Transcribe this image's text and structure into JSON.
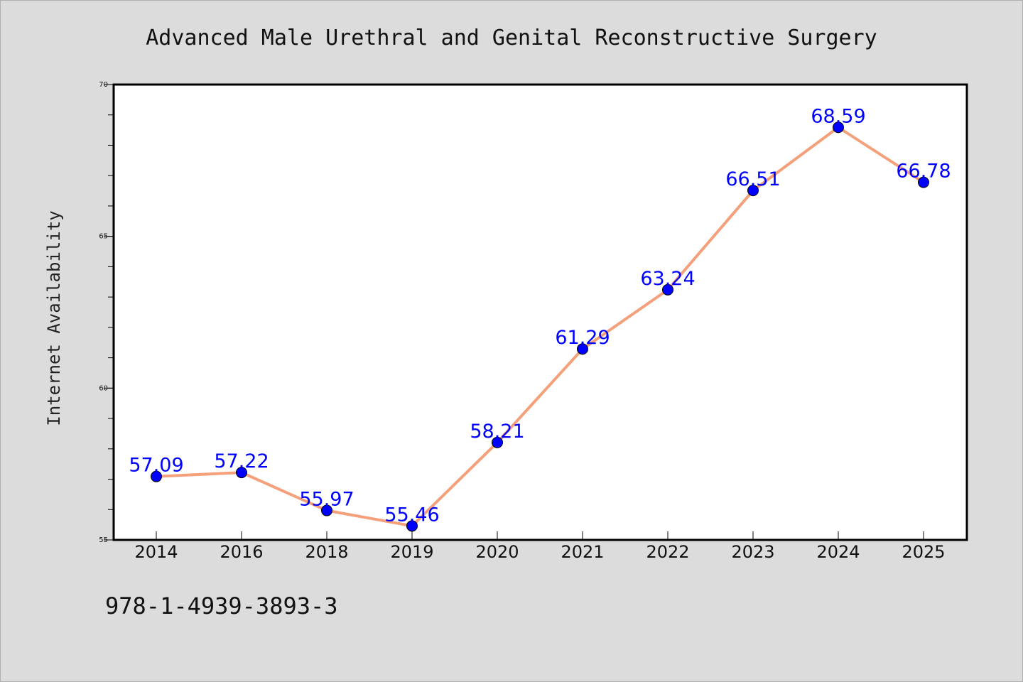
{
  "chart_data": {
    "type": "line",
    "title": "Advanced Male Urethral and Genital Reconstructive Surgery",
    "xlabel": "",
    "ylabel": "Internet Availability",
    "categories": [
      "2014",
      "2016",
      "2018",
      "2019",
      "2020",
      "2021",
      "2022",
      "2023",
      "2024",
      "2025"
    ],
    "series": [
      {
        "values": [
          57.09,
          57.22,
          55.97,
          55.46,
          58.21,
          61.29,
          63.24,
          66.51,
          68.59,
          66.78
        ],
        "line_color": "#f4a07a",
        "marker_color": "#0000ff",
        "label_color": "#0000ff"
      }
    ],
    "ylim": [
      55,
      70
    ],
    "yticks": [
      55,
      60,
      65,
      70
    ],
    "grid": false,
    "legend": "none"
  },
  "footer": {
    "isbn": "978-1-4939-3893-3"
  },
  "colors": {
    "background": "#dcdcdc",
    "plot_background": "#ffffff"
  }
}
